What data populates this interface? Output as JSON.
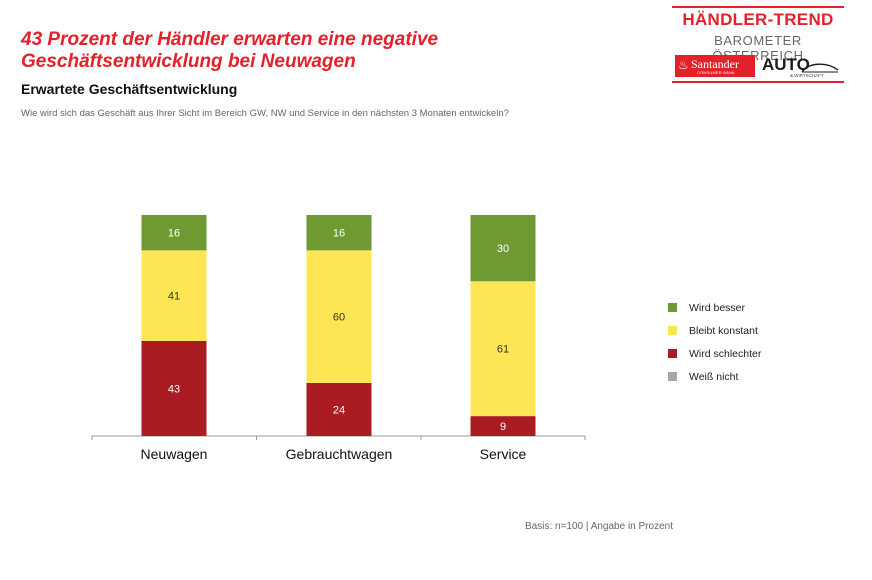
{
  "header": {
    "headline": "43 Prozent der Händler erwarten eine negative\nGeschäftsentwicklung bei Neuwagen",
    "subtitle": "Erwartete Geschäftsentwicklung",
    "question": "Wie wird sich das Geschäft aus Ihrer Sicht im Bereich GW, NW und Service in den nächsten 3 Monaten entwickeln?"
  },
  "brand": {
    "title": "HÄNDLER-TREND",
    "subtitle": "BAROMETER ÖSTERREICH",
    "santander": "Santander",
    "santander_tagline": "CONSUMER BANK",
    "auto": "AUTO",
    "auto_tagline": "& WIRTSCHAFT",
    "brand_color": "#e3212a",
    "santander_icon": "flame-icon",
    "auto_icon": "car-icon"
  },
  "chart_data": {
    "type": "bar",
    "stacked": true,
    "categories": [
      "Neuwagen",
      "Gebrauchtwagen",
      "Service"
    ],
    "series": [
      {
        "name": "Wird schlechter",
        "color": "#aa1b22",
        "values": [
          43,
          24,
          9
        ]
      },
      {
        "name": "Bleibt konstant",
        "color": "#fde553",
        "values": [
          41,
          60,
          61
        ]
      },
      {
        "name": "Wird besser",
        "color": "#6f9a33",
        "values": [
          16,
          16,
          30
        ]
      },
      {
        "name": "Weiß nicht",
        "color": "#a6a6a6",
        "values": [
          0,
          0,
          0
        ]
      }
    ],
    "legend_order": [
      "Wird besser",
      "Bleibt konstant",
      "Wird schlechter",
      "Weiß nicht"
    ],
    "legend_position": "right",
    "ylim": [
      0,
      100
    ],
    "grid": false,
    "title": "",
    "xlabel": "",
    "ylabel": ""
  },
  "footnote": "Basis: n=100 | Angabe in Prozent"
}
